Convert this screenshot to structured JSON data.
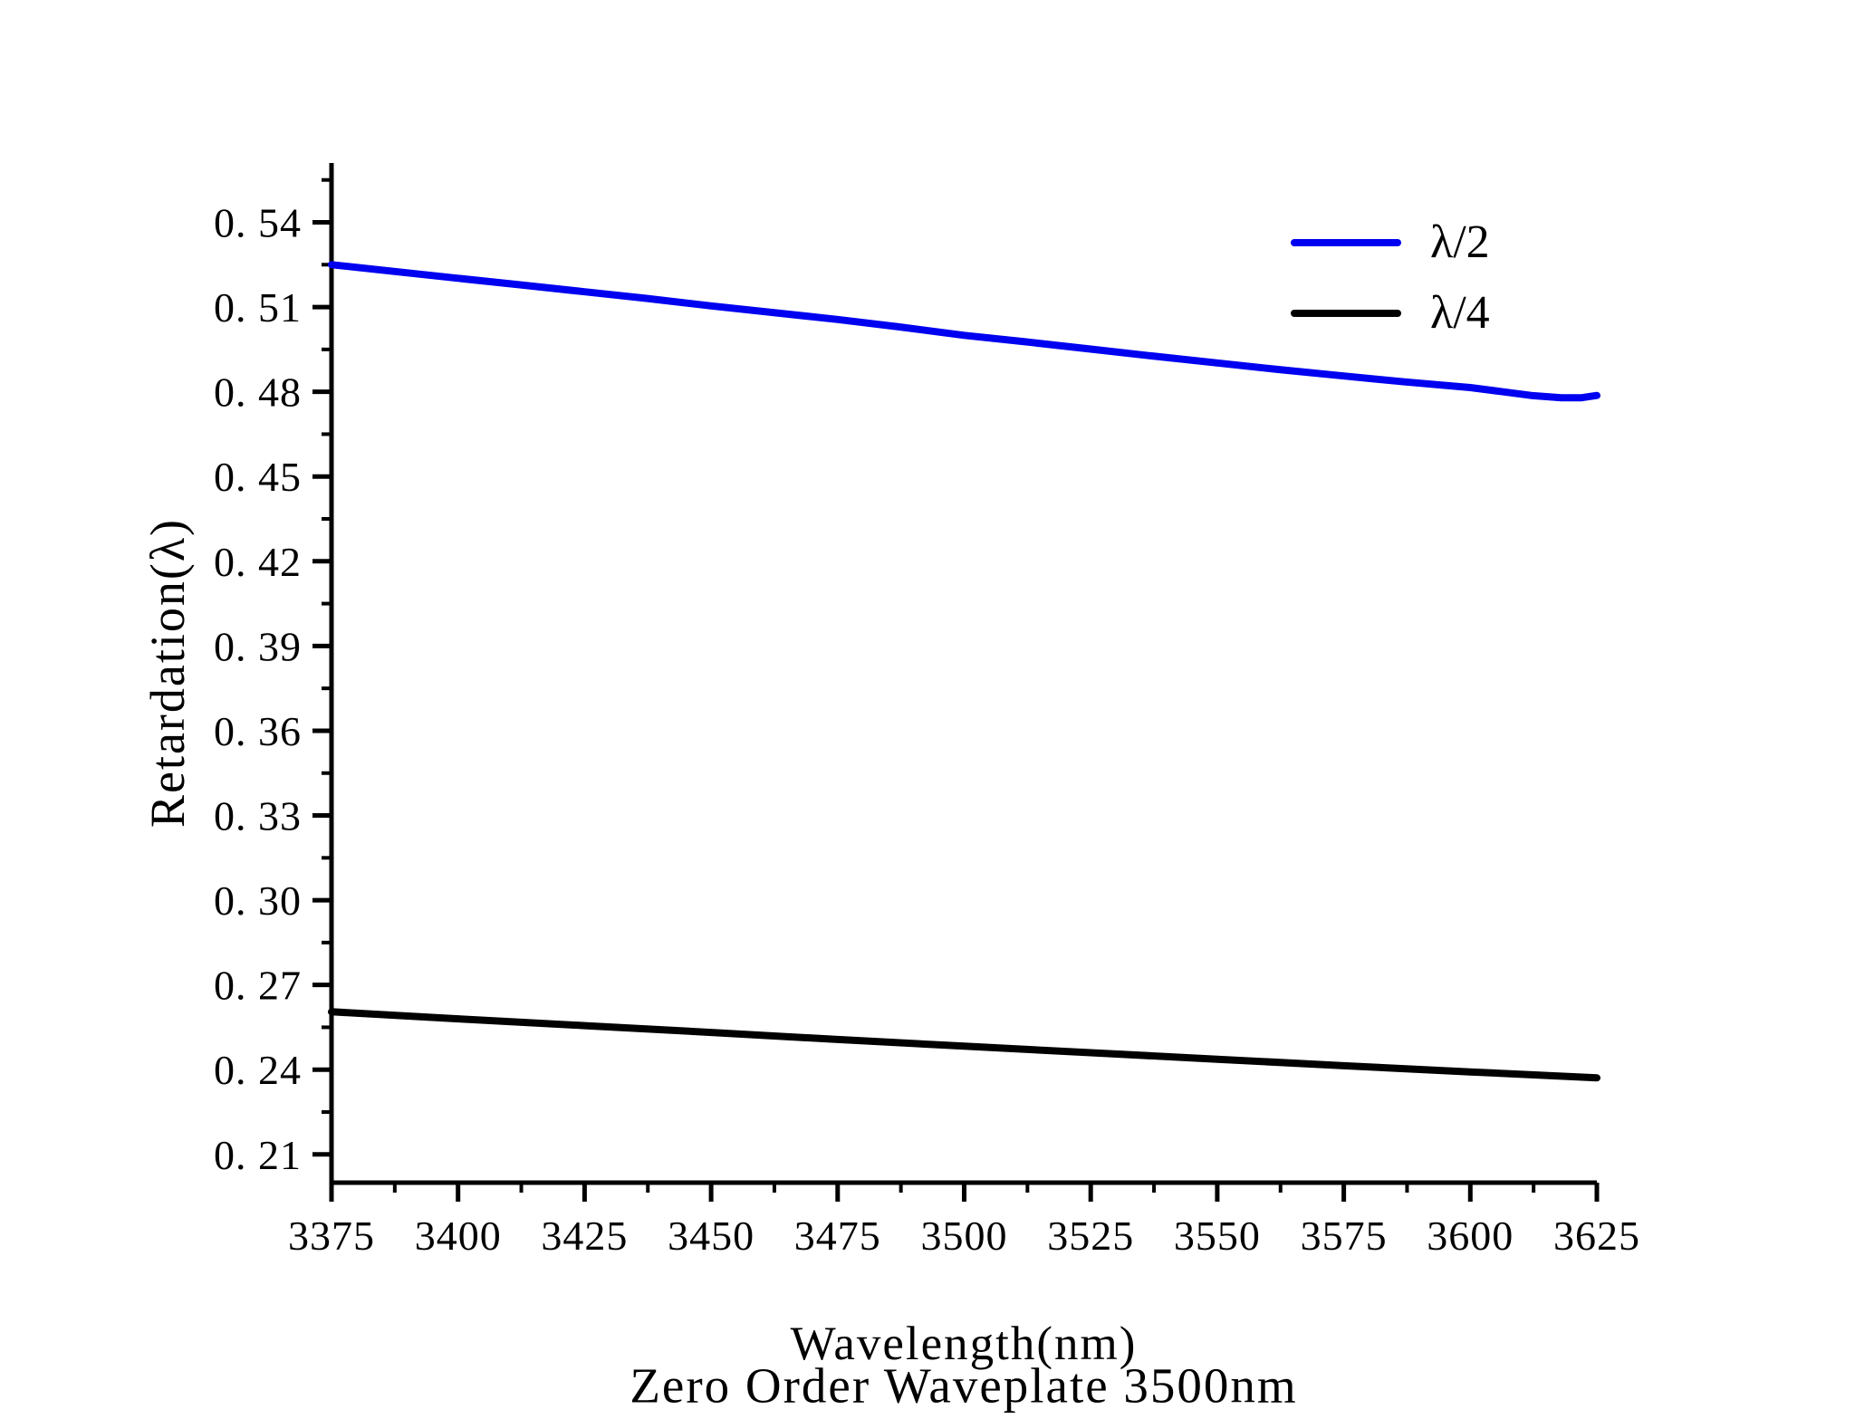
{
  "figure": {
    "background": "#ffffff",
    "axis_color": "#000000",
    "text_color": "#000000"
  },
  "chart_data": {
    "type": "line",
    "title": "Zero Order Waveplate 3500nm",
    "xlabel": "Wavelength(nm)",
    "ylabel": "Retardation(λ)",
    "grid": false,
    "legend_position": "upper-right",
    "xlim": [
      3375,
      3625
    ],
    "ylim": [
      0.2,
      0.561
    ],
    "x_major_ticks": [
      3375,
      3400,
      3425,
      3450,
      3475,
      3500,
      3525,
      3550,
      3575,
      3600,
      3625
    ],
    "x_tick_labels": [
      "3375",
      "3400",
      "3425",
      "3450",
      "3475",
      "3500",
      "3525",
      "3550",
      "3575",
      "3600",
      "3625"
    ],
    "x_minor_ticks": [
      3387.5,
      3412.5,
      3437.5,
      3462.5,
      3487.5,
      3512.5,
      3537.5,
      3562.5,
      3587.5,
      3612.5
    ],
    "y_major_ticks": [
      0.21,
      0.24,
      0.27,
      0.3,
      0.33,
      0.36,
      0.39,
      0.42,
      0.45,
      0.48,
      0.51,
      0.54
    ],
    "y_tick_labels": [
      "0. 21",
      "0. 24",
      "0. 27",
      "0. 30",
      "0. 33",
      "0. 36",
      "0. 39",
      "0. 42",
      "0. 45",
      "0. 48",
      "0. 51",
      "0. 54"
    ],
    "y_minor_ticks": [
      0.225,
      0.255,
      0.285,
      0.315,
      0.345,
      0.375,
      0.405,
      0.435,
      0.465,
      0.495,
      0.525,
      0.555
    ],
    "series": [
      {
        "name": "λ/2",
        "color": "#0000f0",
        "points": [
          [
            3375,
            0.525
          ],
          [
            3390,
            0.5221
          ],
          [
            3400,
            0.5202
          ],
          [
            3412,
            0.5179
          ],
          [
            3425,
            0.5154
          ],
          [
            3437,
            0.5131
          ],
          [
            3450,
            0.5104
          ],
          [
            3462,
            0.5081
          ],
          [
            3475,
            0.5056
          ],
          [
            3487,
            0.503
          ],
          [
            3500,
            0.5
          ],
          [
            3512,
            0.4977
          ],
          [
            3525,
            0.4951
          ],
          [
            3537,
            0.4927
          ],
          [
            3550,
            0.4902
          ],
          [
            3562,
            0.4879
          ],
          [
            3575,
            0.4856
          ],
          [
            3587,
            0.4835
          ],
          [
            3600,
            0.4815
          ],
          [
            3606,
            0.4801
          ],
          [
            3612,
            0.4787
          ],
          [
            3618,
            0.4779
          ],
          [
            3622,
            0.4779
          ],
          [
            3625,
            0.4787
          ]
        ]
      },
      {
        "name": "λ/4",
        "color": "#000000",
        "points": [
          [
            3375,
            0.2605
          ],
          [
            3400,
            0.258
          ],
          [
            3425,
            0.2556
          ],
          [
            3450,
            0.2532
          ],
          [
            3475,
            0.2507
          ],
          [
            3500,
            0.2483
          ],
          [
            3525,
            0.246
          ],
          [
            3550,
            0.2437
          ],
          [
            3575,
            0.2414
          ],
          [
            3600,
            0.2392
          ],
          [
            3625,
            0.2371
          ]
        ]
      }
    ]
  }
}
